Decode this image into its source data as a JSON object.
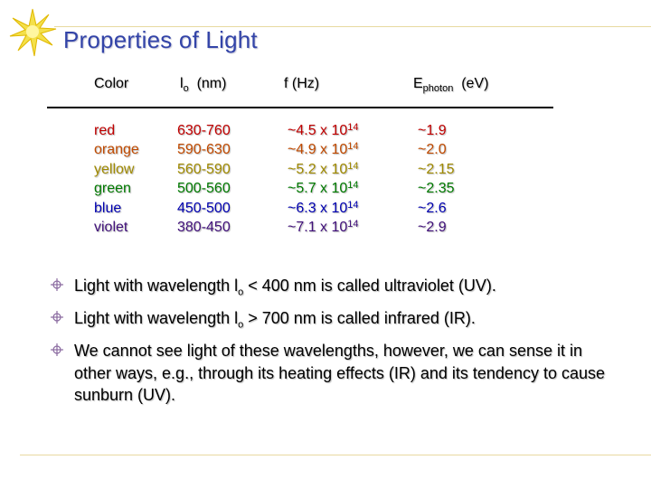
{
  "title": "Properties of Light",
  "table": {
    "headers": {
      "color": "Color",
      "wavelength_symbol": "l",
      "wavelength_sub": "o",
      "wavelength_unit": "(nm)",
      "frequency": "f  (Hz)",
      "energy_symbol": "E",
      "energy_sub": "photon",
      "energy_unit": "(eV)"
    },
    "rows": [
      {
        "color": "red",
        "wavelength": "630-760",
        "freq_mantissa": "~4.5 x 10",
        "freq_exp": "14",
        "energy": "~1.9",
        "text_color": "#c00000"
      },
      {
        "color": "orange",
        "wavelength": "590-630",
        "freq_mantissa": "~4.9 x 10",
        "freq_exp": "14",
        "energy": "~2.0",
        "text_color": "#c04a00"
      },
      {
        "color": "yellow",
        "wavelength": "560-590",
        "freq_mantissa": "~5.2 x 10",
        "freq_exp": "14",
        "energy": "~2.15",
        "text_color": "#a08a00"
      },
      {
        "color": "green",
        "wavelength": "500-560",
        "freq_mantissa": "~5.7 x 10",
        "freq_exp": "14",
        "energy": "~2.35",
        "text_color": "#007a00"
      },
      {
        "color": "blue",
        "wavelength": "450-500",
        "freq_mantissa": "~6.3 x 10",
        "freq_exp": "14",
        "energy": "~2.6",
        "text_color": "#0000b0"
      },
      {
        "color": "violet",
        "wavelength": "380-450",
        "freq_mantissa": "~7.1 x 10",
        "freq_exp": "14",
        "energy": "~2.9",
        "text_color": "#40107a"
      }
    ]
  },
  "bullets": [
    {
      "pre": "Light with wavelength ",
      "sym": "l",
      "sub": "o",
      "post": " < 400 nm is called ultraviolet (UV)."
    },
    {
      "pre": "Light with wavelength ",
      "sym": "l",
      "sub": "o",
      "post": " > 700 nm is called infrared (IR)."
    },
    {
      "text": "We cannot see light of these wavelengths, however, we can sense it in other ways, e.g., through its heating effects (IR) and its tendency to cause sunburn (UV)."
    }
  ],
  "colors": {
    "title": "#3344a8",
    "bullet": "#8a6aa0",
    "rule": "#e8d9a0",
    "sun": "#f4e04a"
  },
  "icons": {
    "logo": "sunburst-icon",
    "bullet": "crosshair-bullet-icon"
  }
}
